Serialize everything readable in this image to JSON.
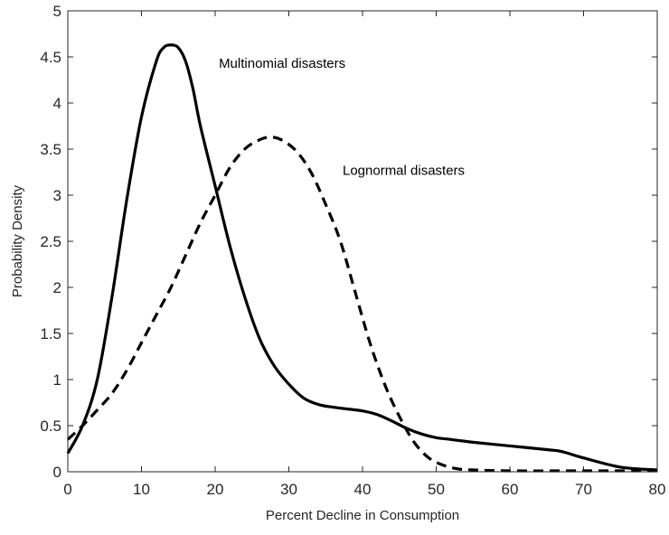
{
  "chart_data": {
    "type": "line",
    "title": "",
    "xlabel": "Percent Decline in Consumption",
    "ylabel": "Probability Density",
    "xlim": [
      0,
      80
    ],
    "ylim": [
      0,
      5
    ],
    "xticks": [
      0,
      10,
      20,
      30,
      40,
      50,
      60,
      70,
      80
    ],
    "yticks": [
      0,
      0.5,
      1,
      1.5,
      2,
      2.5,
      3,
      3.5,
      4,
      4.5,
      5
    ],
    "xtick_labels": [
      "0",
      "10",
      "20",
      "30",
      "40",
      "50",
      "60",
      "70",
      "80"
    ],
    "ytick_labels": [
      "0",
      "0.5",
      "1",
      "1.5",
      "2",
      "2.5",
      "3",
      "3.5",
      "4",
      "4.5",
      "5"
    ],
    "grid": false,
    "legend": "none",
    "series": [
      {
        "name": "Multinomial disasters",
        "style": "solid",
        "color": "#000000",
        "x": [
          0,
          2,
          4,
          6,
          8,
          10,
          12,
          13,
          14,
          15,
          16,
          17,
          18,
          20,
          22,
          24,
          26,
          28,
          30,
          32,
          34,
          36,
          38,
          40,
          42,
          44,
          46,
          48,
          50,
          52,
          55,
          60,
          65,
          67,
          70,
          75,
          80
        ],
        "y": [
          0.2,
          0.5,
          1.0,
          1.9,
          2.95,
          3.85,
          4.45,
          4.6,
          4.63,
          4.6,
          4.45,
          4.15,
          3.75,
          3.1,
          2.45,
          1.9,
          1.45,
          1.15,
          0.95,
          0.8,
          0.73,
          0.7,
          0.68,
          0.66,
          0.62,
          0.55,
          0.47,
          0.41,
          0.37,
          0.35,
          0.32,
          0.28,
          0.24,
          0.22,
          0.15,
          0.05,
          0.02
        ]
      },
      {
        "name": "Lognormal disasters",
        "style": "dashed",
        "color": "#000000",
        "x": [
          0,
          2,
          4,
          6,
          8,
          10,
          12,
          14,
          16,
          18,
          20,
          22,
          24,
          26,
          27.5,
          29,
          31,
          33,
          35,
          37,
          39,
          41,
          43,
          45,
          47,
          49,
          51,
          53,
          55,
          60,
          70,
          80
        ],
        "y": [
          0.35,
          0.5,
          0.67,
          0.85,
          1.1,
          1.4,
          1.7,
          2.0,
          2.35,
          2.7,
          3.0,
          3.3,
          3.5,
          3.6,
          3.63,
          3.6,
          3.48,
          3.25,
          2.9,
          2.5,
          1.95,
          1.4,
          0.95,
          0.6,
          0.32,
          0.15,
          0.07,
          0.03,
          0.02,
          0.01,
          0.01,
          0.01
        ]
      }
    ],
    "annotations": [
      {
        "text": "Multinomial disasters",
        "x": 20.5,
        "y": 4.38
      },
      {
        "text": "Lognormal disasters",
        "x": 37.3,
        "y": 3.22
      }
    ]
  }
}
